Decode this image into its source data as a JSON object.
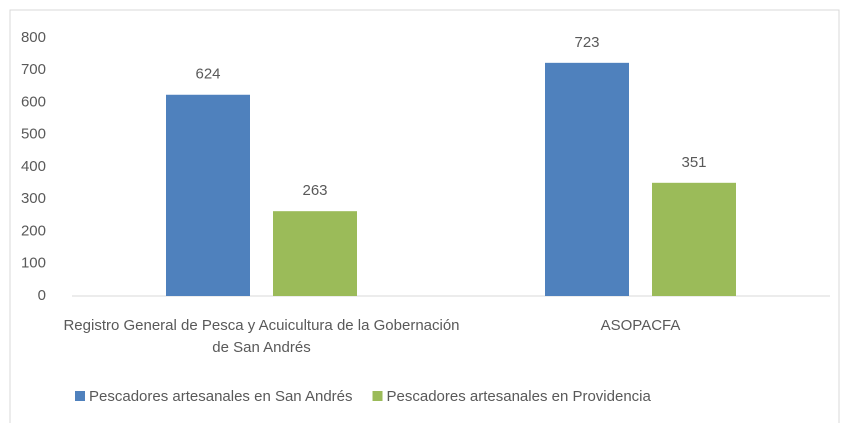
{
  "chart_data": {
    "type": "bar",
    "categories": [
      "Registro General de Pesca y Acuicultura de la Gobernación de San Andrés",
      "ASOPACFA"
    ],
    "series": [
      {
        "name": "Pescadores artesanales en San Andrés",
        "color": "#4f81bd",
        "values": [
          624,
          723
        ]
      },
      {
        "name": "Pescadores artesanales en Providencia",
        "color": "#9bbb59",
        "values": [
          263,
          351
        ]
      }
    ],
    "ylim": [
      0,
      800
    ],
    "yticks": [
      0,
      100,
      200,
      300,
      400,
      500,
      600,
      700,
      800
    ],
    "grid": false,
    "legend": "bottom"
  }
}
